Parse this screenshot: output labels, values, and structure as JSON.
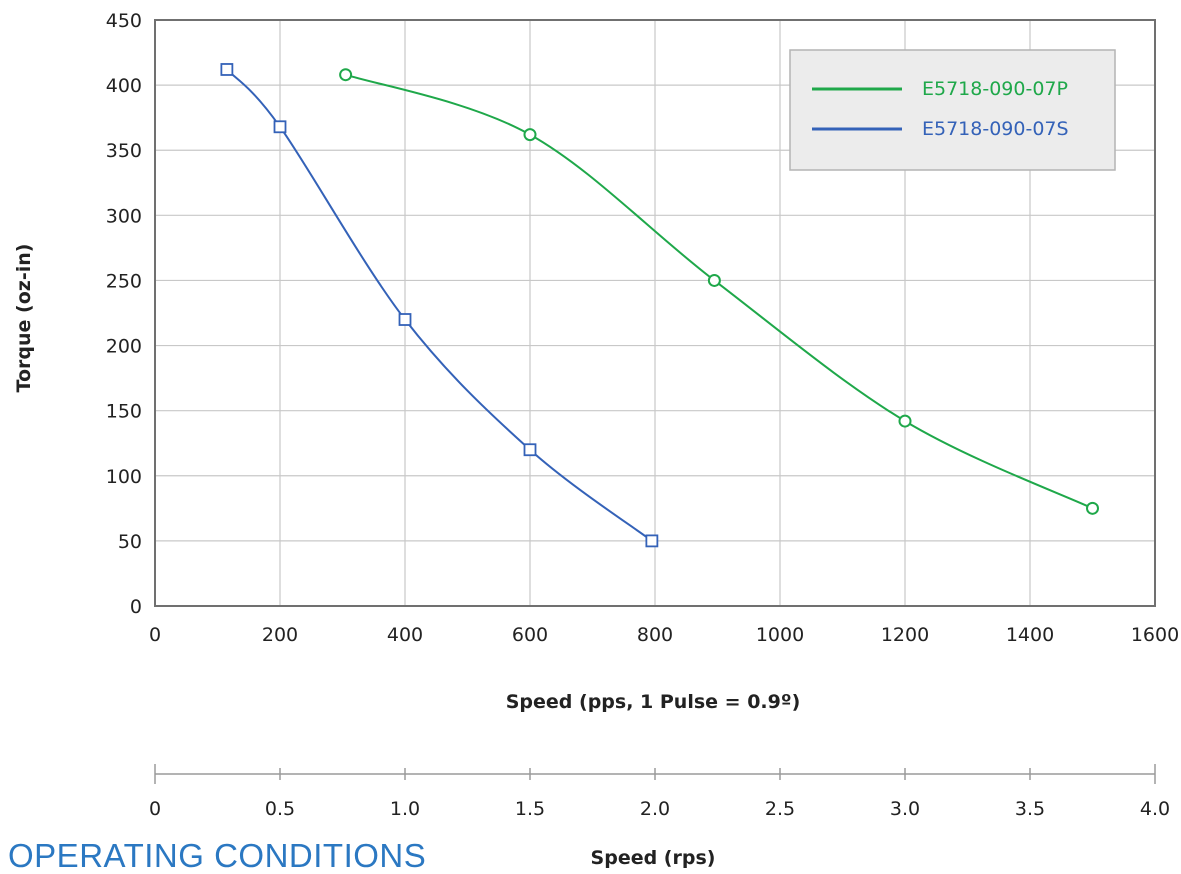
{
  "section_heading": "OPERATING CONDITIONS",
  "chart_data": {
    "type": "line",
    "xlabel": "Speed (pps, 1 Pulse = 0.9º)",
    "ylabel": "Torque (oz-in)",
    "xlim": [
      0,
      1600
    ],
    "ylim": [
      0,
      450
    ],
    "x_ticks": [
      "0",
      "200",
      "400",
      "600",
      "800",
      "1000",
      "1200",
      "1400",
      "1600"
    ],
    "y_ticks": [
      "0",
      "50",
      "100",
      "150",
      "200",
      "250",
      "300",
      "350",
      "400",
      "450"
    ],
    "grid": true,
    "legend_position": "top-right",
    "series": [
      {
        "name": "E5718-090-07P",
        "color": "#1fa84a",
        "marker": "circle",
        "x": [
          305,
          600,
          895,
          1200,
          1500
        ],
        "y": [
          408,
          362,
          250,
          142,
          75
        ]
      },
      {
        "name": "E5718-090-07S",
        "color": "#3462b8",
        "marker": "square",
        "x": [
          115,
          200,
          400,
          600,
          795
        ],
        "y": [
          412,
          368,
          220,
          120,
          50
        ]
      }
    ],
    "secondary_axis": {
      "xlabel": "Speed (rps)",
      "xlim": [
        0,
        4.0
      ],
      "ticks": [
        "0",
        "0.5",
        "1.0",
        "1.5",
        "2.0",
        "2.5",
        "3.0",
        "3.5",
        "4.0"
      ]
    }
  }
}
